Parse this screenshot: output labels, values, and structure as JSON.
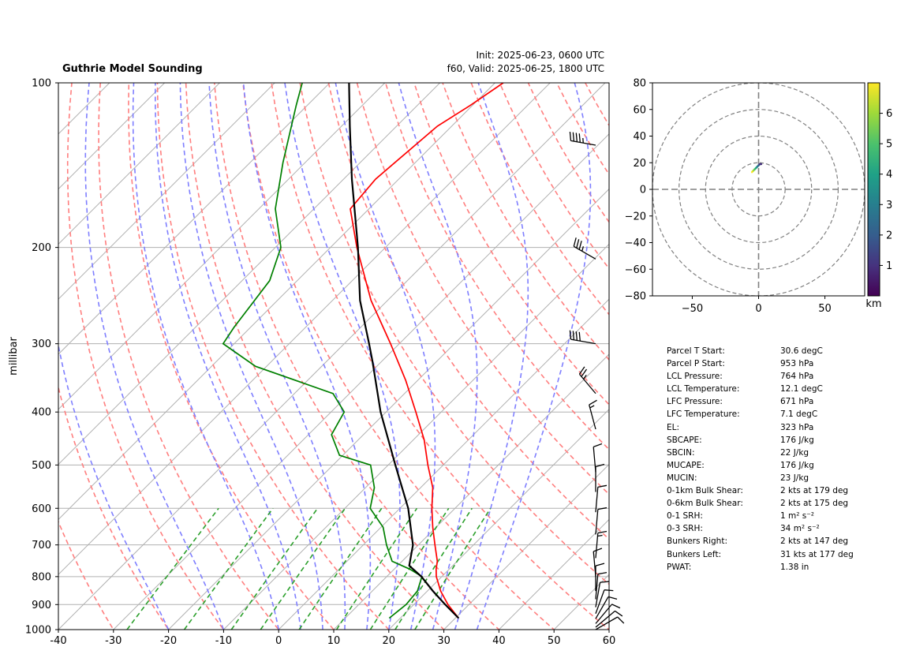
{
  "title": "Guthrie Model Sounding",
  "init_line": "Init: 2025-06-23, 0600 UTC",
  "valid_line": "f60, Valid: 2025-06-25, 1800 UTC",
  "colors": {
    "temperature": "#ff0000",
    "dewpoint": "#008000",
    "parcel": "#000000",
    "dry_adiabat": "#ff7f7f",
    "moist_adiabat": "#7f7fff",
    "mixing_ratio": "#2ca02c",
    "isotherm": "#b0b0b0",
    "isobar": "#b0b0b0"
  },
  "chart_data": [
    {
      "type": "line",
      "subtype": "skew-t",
      "ylabel": "millibar",
      "xlim": [
        -40,
        60
      ],
      "ylim": [
        1000,
        100
      ],
      "yscale": "log",
      "x_ticks": [
        "-40",
        "-30",
        "-20",
        "-10",
        "0",
        "10",
        "20",
        "30",
        "40",
        "50",
        "60"
      ],
      "y_ticks": [
        "100",
        "200",
        "300",
        "400",
        "500",
        "600",
        "700",
        "800",
        "900",
        "1000"
      ],
      "grid": true,
      "series": [
        {
          "key": "temperature",
          "p": [
            953,
            900,
            850,
            800,
            775,
            750,
            700,
            650,
            600,
            550,
            500,
            450,
            400,
            350,
            300,
            250,
            200,
            170,
            150,
            120,
            110,
            100
          ],
          "t": [
            30.6,
            26.2,
            22.4,
            19.0,
            17.6,
            16.4,
            13.0,
            9.4,
            5.8,
            2.2,
            -2.8,
            -8.0,
            -14.6,
            -22.2,
            -31.6,
            -43.0,
            -55.2,
            -63.4,
            -64.2,
            -62.6,
            -60.4,
            -58.5
          ]
        },
        {
          "key": "dewpoint",
          "p": [
            953,
            900,
            850,
            800,
            775,
            750,
            700,
            650,
            600,
            550,
            500,
            480,
            440,
            400,
            370,
            330,
            300,
            280,
            230,
            200,
            170,
            140,
            110,
            100
          ],
          "t": [
            18.0,
            18.6,
            18.2,
            16.4,
            12.8,
            8.2,
            4.2,
            0.4,
            -5.4,
            -8.4,
            -13.2,
            -20.6,
            -25.8,
            -27.6,
            -33.0,
            -52.0,
            -62.0,
            -63.0,
            -65.0,
            -69.0,
            -77.0,
            -84.0,
            -92.0,
            -95.0
          ]
        },
        {
          "key": "parcel",
          "p": [
            953,
            900,
            850,
            800,
            764,
            700,
            600,
            500,
            400,
            323,
            300,
            250,
            200,
            150,
            120,
            100
          ],
          "t": [
            30.6,
            25.7,
            21.0,
            16.3,
            12.1,
            9.0,
            1.5,
            -8.7,
            -21.0,
            -31.7,
            -35.5,
            -45.0,
            -55.0,
            -68.5,
            -78.5,
            -86.5
          ]
        }
      ]
    },
    {
      "type": "line",
      "subtype": "hodograph",
      "xlim": [
        -80,
        80
      ],
      "ylim": [
        -80,
        80
      ],
      "x_ticks": [
        "−50",
        "0",
        "50"
      ],
      "y_ticks": [
        "80",
        "60",
        "40",
        "20",
        "0",
        "−20",
        "−40",
        "−60",
        "−80"
      ],
      "rings": [
        20,
        40,
        60,
        80
      ],
      "colorbar_label": "km",
      "colorbar_ticks": [
        "1",
        "2",
        "3",
        "4",
        "5",
        "6"
      ],
      "colorbar_range": [
        0,
        7
      ],
      "u": [
        -5,
        -4,
        -3,
        -2,
        -1,
        0,
        1,
        2
      ],
      "v": [
        13,
        14,
        15,
        16,
        17,
        18,
        19,
        19
      ],
      "height_km": [
        6.8,
        6.0,
        5.0,
        4.0,
        3.0,
        2.0,
        1.0,
        0.3
      ]
    }
  ],
  "barbs": [
    {
      "p": 130,
      "dir": 280,
      "spd": 45
    },
    {
      "p": 210,
      "dir": 300,
      "spd": 35
    },
    {
      "p": 300,
      "dir": 280,
      "spd": 40
    },
    {
      "p": 370,
      "dir": 320,
      "spd": 25
    },
    {
      "p": 430,
      "dir": 345,
      "spd": 15
    },
    {
      "p": 515,
      "dir": 355,
      "spd": 12
    },
    {
      "p": 560,
      "dir": 0,
      "spd": 10
    },
    {
      "p": 610,
      "dir": 5,
      "spd": 10
    },
    {
      "p": 670,
      "dir": 5,
      "spd": 12
    },
    {
      "p": 740,
      "dir": 5,
      "spd": 15
    },
    {
      "p": 800,
      "dir": 355,
      "spd": 10
    },
    {
      "p": 850,
      "dir": 0,
      "spd": 10
    },
    {
      "p": 880,
      "dir": 5,
      "spd": 8
    },
    {
      "p": 910,
      "dir": 10,
      "spd": 8
    },
    {
      "p": 935,
      "dir": 20,
      "spd": 10
    },
    {
      "p": 955,
      "dir": 30,
      "spd": 10
    },
    {
      "p": 975,
      "dir": 40,
      "spd": 10
    },
    {
      "p": 990,
      "dir": 50,
      "spd": 10
    },
    {
      "p": 1000,
      "dir": 60,
      "spd": 10
    }
  ],
  "stats": [
    {
      "label": "Parcel T Start:",
      "value": "30.6 degC"
    },
    {
      "label": "Parcel P Start:",
      "value": "953 hPa"
    },
    {
      "label": "LCL Pressure:",
      "value": "764 hPa"
    },
    {
      "label": "LCL Temperature:",
      "value": "12.1 degC"
    },
    {
      "label": "LFC Pressure:",
      "value": "671 hPa"
    },
    {
      "label": "LFC Temperature:",
      "value": "7.1 degC"
    },
    {
      "label": "EL:",
      "value": "323 hPa"
    },
    {
      "label": "SBCAPE:",
      "value": "176 J/kg"
    },
    {
      "label": "SBCIN:",
      "value": "22 J/kg"
    },
    {
      "label": "MUCAPE:",
      "value": "176 J/kg"
    },
    {
      "label": "MUCIN:",
      "value": "23 J/kg"
    },
    {
      "label": "0-1km Bulk Shear:",
      "value": "2 kts at 179 deg"
    },
    {
      "label": "0-6km Bulk Shear:",
      "value": "2 kts at 175 deg"
    },
    {
      "label": "0-1 SRH:",
      "value": "1 m² s⁻²"
    },
    {
      "label": "0-3 SRH:",
      "value": "34 m² s⁻²"
    },
    {
      "label": "Bunkers Right:",
      "value": "2 kts at 147 deg"
    },
    {
      "label": "Bunkers Left:",
      "value": "31 kts at 177 deg"
    },
    {
      "label": "PWAT:",
      "value": "1.38 in"
    }
  ]
}
